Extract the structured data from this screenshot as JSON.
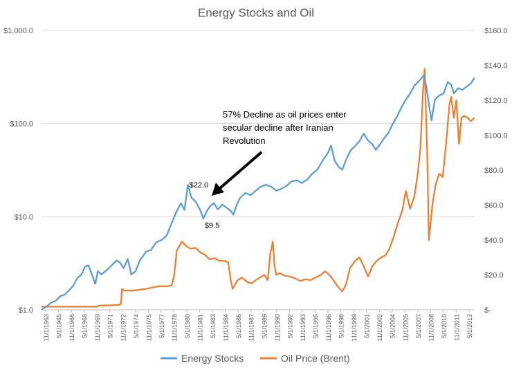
{
  "chart_data": {
    "type": "line",
    "title": "Energy Stocks and Oil",
    "xlabel": "",
    "ylabel": "",
    "y_left": {
      "scale": "log",
      "range": [
        1,
        1000
      ],
      "ticks": [
        1,
        10,
        100,
        1000
      ],
      "tick_labels": [
        "$1.0",
        "$10.0",
        "$100.0",
        "$1,000.0"
      ]
    },
    "y_right": {
      "scale": "linear",
      "range": [
        0,
        160
      ],
      "ticks": [
        0,
        20,
        40,
        60,
        80,
        100,
        120,
        140,
        160
      ],
      "tick_labels": [
        "$-",
        "$20.0",
        "$40.0",
        "$60.0",
        "$80.0",
        "$100.0",
        "$120.0",
        "$140.0",
        "$160.0"
      ]
    },
    "x_tick_labels": [
      "11/1/1963",
      "5/1/1965",
      "11/1/1966",
      "5/1/1968",
      "11/1/1969",
      "5/1/1971",
      "11/1/1972",
      "5/1/1974",
      "11/1/1975",
      "5/1/1977",
      "11/1/1978",
      "5/1/1980",
      "11/1/1981",
      "5/1/1983",
      "11/1/1984",
      "5/1/1986",
      "11/1/1987",
      "5/1/1989",
      "11/1/1990",
      "5/1/1992",
      "11/1/1993",
      "5/1/1995",
      "11/1/1996",
      "5/1/1998",
      "11/1/1999",
      "5/1/2001",
      "11/1/2002",
      "5/1/2004",
      "11/1/2005",
      "5/1/2007",
      "11/1/2008",
      "5/1/2010",
      "11/1/2011",
      "5/1/2013"
    ],
    "x_range": [
      1963.83,
      2014.33
    ],
    "grid": "horizontal",
    "legend_position": "bottom",
    "series": [
      {
        "name": "Energy Stocks",
        "axis": "left",
        "color": "#5b9bd5",
        "x": [
          1963.83,
          1964.5,
          1965,
          1965.5,
          1966,
          1966.5,
          1967,
          1967.5,
          1968,
          1968.5,
          1968.9,
          1969.3,
          1969.7,
          1970.1,
          1970.4,
          1970.8,
          1971.3,
          1972,
          1972.6,
          1973,
          1973.4,
          1973.9,
          1974.3,
          1974.8,
          1975.3,
          1976,
          1976.6,
          1977.2,
          1977.8,
          1978.4,
          1979,
          1979.6,
          1980.1,
          1980.5,
          1980.9,
          1981.3,
          1981.8,
          1982.3,
          1982.7,
          1983.1,
          1983.5,
          1983.9,
          1984.4,
          1984.9,
          1985.4,
          1985.9,
          1986.2,
          1986.6,
          1987,
          1987.6,
          1988.2,
          1988.8,
          1989.4,
          1990,
          1990.6,
          1991.2,
          1991.8,
          1992.4,
          1993,
          1993.6,
          1994.2,
          1994.8,
          1995.4,
          1996,
          1996.6,
          1997.2,
          1997.6,
          1998,
          1998.5,
          1998.9,
          1999.4,
          1999.9,
          2000.4,
          2000.9,
          2001.4,
          2001.9,
          2002.4,
          2002.8,
          2003.3,
          2003.8,
          2004.3,
          2004.8,
          2005.3,
          2005.8,
          2006.3,
          2006.8,
          2007.3,
          2007.9,
          2008.4,
          2008.7,
          2009.0,
          2009.3,
          2009.7,
          2010.2,
          2010.7,
          2011.2,
          2011.6,
          2011.9,
          2012.4,
          2012.9,
          2013.4,
          2013.9,
          2014.3
        ],
        "y": [
          1.0,
          1.1,
          1.2,
          1.25,
          1.4,
          1.45,
          1.6,
          1.8,
          2.2,
          2.4,
          2.9,
          3.0,
          2.4,
          1.9,
          2.6,
          2.4,
          2.6,
          3.0,
          3.4,
          3.2,
          2.8,
          3.5,
          2.4,
          2.6,
          3.4,
          4.2,
          4.4,
          5.3,
          5.6,
          6.2,
          8.5,
          11.5,
          14.0,
          11.8,
          22.0,
          16.0,
          14.5,
          12.0,
          9.5,
          11.5,
          13.0,
          14.0,
          12.0,
          13.5,
          12.5,
          11.5,
          10.5,
          13.5,
          16.0,
          18.0,
          17.0,
          19.0,
          21.0,
          22.0,
          21.0,
          19.0,
          20.0,
          21.5,
          24.0,
          24.5,
          23.0,
          25.0,
          29.0,
          32.0,
          40.0,
          48.0,
          58.0,
          40.0,
          34.0,
          32.0,
          42.0,
          52.0,
          57.0,
          65.0,
          78.0,
          66.0,
          60.0,
          52.0,
          60.0,
          70.0,
          80.0,
          100.0,
          120.0,
          150.0,
          180.0,
          210.0,
          255.0,
          290.0,
          330.0,
          250.0,
          160.0,
          108.0,
          180.0,
          200.0,
          210.0,
          280.0,
          260.0,
          210.0,
          240.0,
          230.0,
          250.0,
          270.0,
          310.0
        ]
      },
      {
        "name": "Oil Price (Brent)",
        "axis": "right",
        "color": "#ed7d31",
        "x": [
          1963.83,
          1965,
          1967,
          1969,
          1970.3,
          1970.5,
          1972,
          1972.9,
          1973.1,
          1973.2,
          1973.5,
          1974.5,
          1976,
          1977.5,
          1978.6,
          1979,
          1979.3,
          1979.6,
          1980.2,
          1980.7,
          1981.2,
          1981.8,
          1982.3,
          1982.9,
          1983.4,
          1984,
          1984.6,
          1985.2,
          1985.6,
          1985.9,
          1986.1,
          1986.4,
          1986.7,
          1987.2,
          1987.8,
          1988.3,
          1988.8,
          1989.3,
          1989.8,
          1990.2,
          1990.5,
          1990.8,
          1991,
          1991.2,
          1991.6,
          1992.2,
          1992.8,
          1993.4,
          1994,
          1994.6,
          1995.2,
          1995.8,
          1996.4,
          1996.9,
          1997.5,
          1998,
          1998.5,
          1998.9,
          1999.3,
          1999.8,
          2000.4,
          2000.9,
          2001.4,
          2001.9,
          2002.4,
          2002.9,
          2003.4,
          2003.9,
          2004.4,
          2004.9,
          2005.4,
          2005.9,
          2006.3,
          2006.8,
          2007.3,
          2007.7,
          2008.0,
          2008.3,
          2008.5,
          2008.8,
          2009.0,
          2009.4,
          2009.8,
          2010.2,
          2010.6,
          2011.0,
          2011.4,
          2011.6,
          2011.9,
          2012.2,
          2012.5,
          2012.8,
          2013.1,
          2013.5,
          2013.9,
          2014.3
        ],
        "y": [
          1.8,
          1.8,
          1.8,
          1.8,
          1.8,
          2.4,
          2.6,
          2.8,
          3.5,
          12.0,
          11.0,
          11.0,
          12.0,
          13.5,
          13.6,
          14.0,
          20.0,
          34.0,
          39.0,
          36.5,
          35.0,
          35.5,
          33.0,
          31.5,
          29.0,
          29.5,
          28.0,
          28.0,
          27.0,
          17.0,
          12.0,
          14.5,
          17.0,
          18.5,
          16.0,
          15.0,
          17.0,
          18.5,
          20.0,
          17.0,
          32.0,
          39.0,
          25.0,
          20.0,
          21.0,
          19.5,
          19.0,
          18.0,
          16.5,
          17.5,
          17.0,
          18.5,
          20.0,
          22.0,
          19.5,
          16.0,
          12.5,
          10.5,
          14.0,
          24.0,
          28.0,
          30.0,
          25.0,
          19.0,
          25.0,
          28.0,
          30.0,
          31.0,
          35.0,
          42.0,
          50.0,
          57.0,
          68.0,
          58.0,
          65.0,
          78.0,
          92.0,
          125.0,
          138.0,
          90.0,
          40.0,
          60.0,
          72.0,
          78.0,
          76.0,
          95.0,
          118.0,
          122.0,
          110.0,
          120.0,
          95.0,
          110.0,
          111.0,
          110.0,
          108.0,
          110.0
        ]
      }
    ],
    "annotations": [
      {
        "text_lines": [
          "57% Decline as oil prices enter",
          "secular decline after Iranian",
          "Revolution"
        ]
      },
      {
        "text": "$22.0",
        "x": 1980.9,
        "y": 22.0,
        "axis": "left"
      },
      {
        "text": "$9.5",
        "x": 1982.7,
        "y": 9.5,
        "axis": "left"
      }
    ]
  }
}
